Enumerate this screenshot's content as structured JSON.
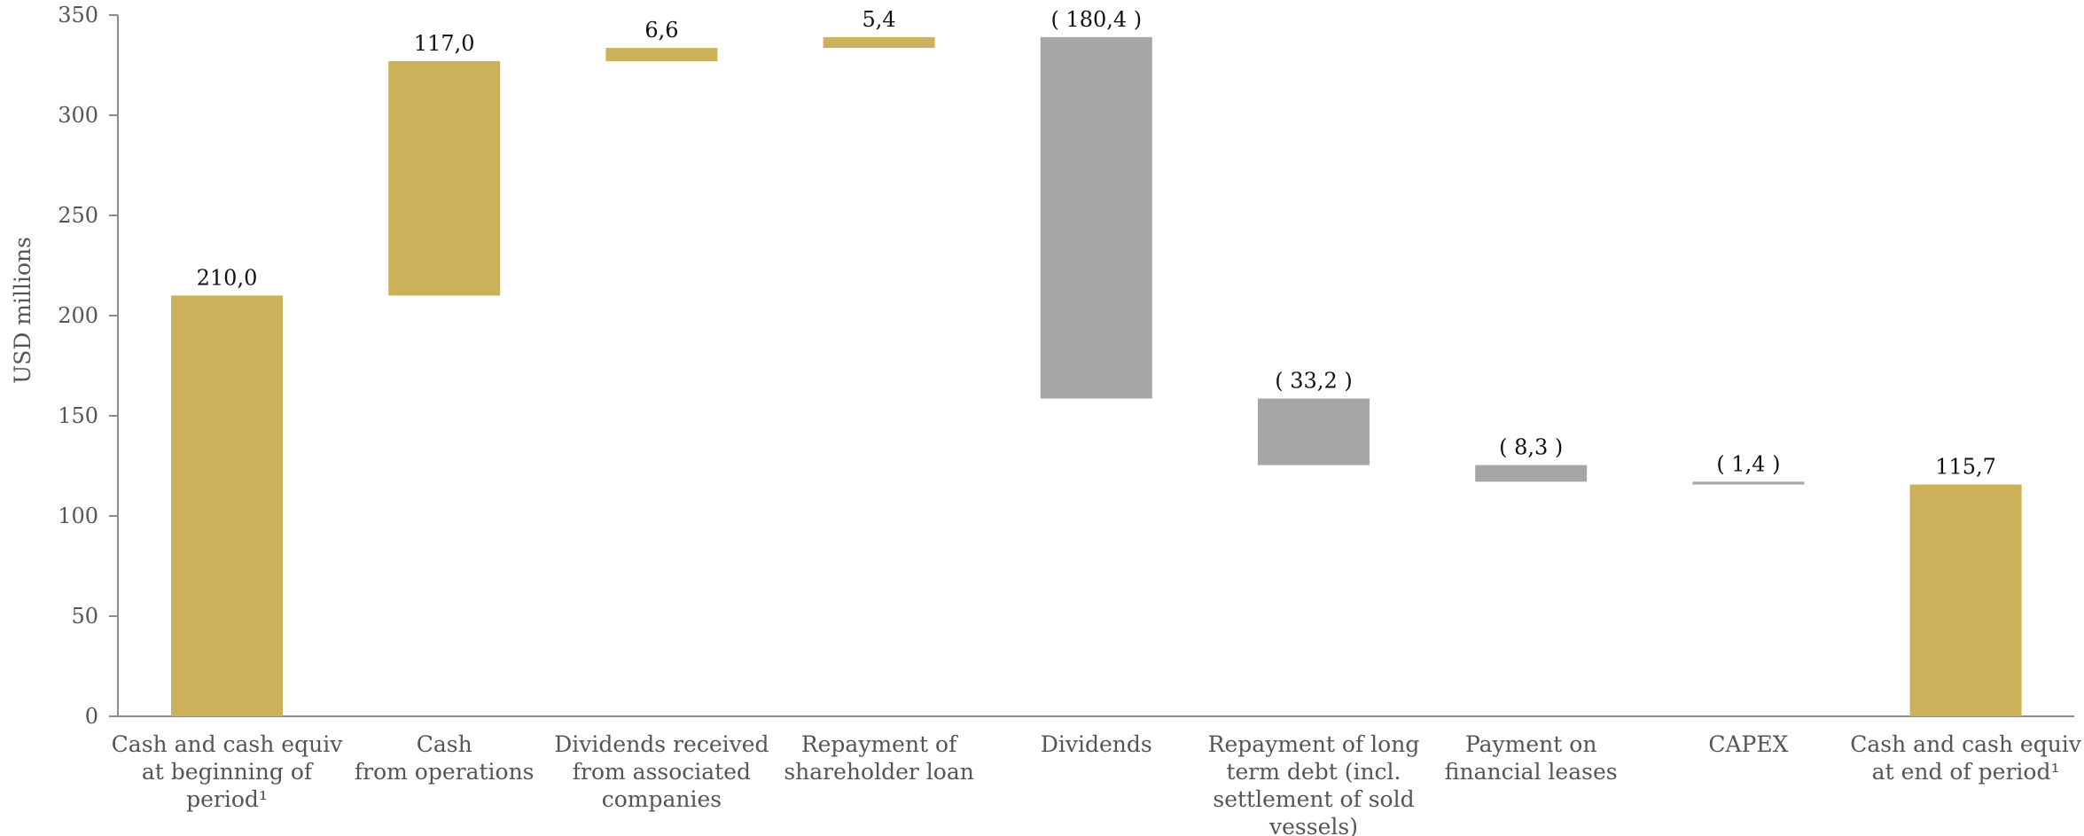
{
  "chart_data": {
    "type": "bar",
    "subtype": "waterfall",
    "title": "",
    "xlabel": "",
    "ylabel": "USD millions",
    "ylim": [
      0,
      350
    ],
    "yticks": [
      0,
      50,
      100,
      150,
      200,
      250,
      300,
      350
    ],
    "yticks_text": [
      "0",
      "50",
      "100",
      "150",
      "200",
      "250",
      "300",
      "350"
    ],
    "grid": false,
    "colors": {
      "positive": "#CCB05A",
      "negative": "#A6A6A6"
    },
    "categories": [
      [
        "Cash and cash equiv",
        "at beginning of",
        "period¹"
      ],
      [
        "Cash",
        "from operations"
      ],
      [
        "Dividends received",
        "from associated",
        "companies"
      ],
      [
        "Repayment of",
        "shareholder loan"
      ],
      [
        "Dividends"
      ],
      [
        "Repayment of long",
        "term debt (incl.",
        "settlement of sold",
        "vessels)"
      ],
      [
        "Payment on",
        "financial leases"
      ],
      [
        "CAPEX"
      ],
      [
        "Cash and cash equiv",
        "at end of period¹"
      ]
    ],
    "bars": [
      {
        "start": 0,
        "end": 210.0,
        "color": "positive",
        "label": "210,0"
      },
      {
        "start": 210.0,
        "end": 327.0,
        "color": "positive",
        "label": "117,0"
      },
      {
        "start": 327.0,
        "end": 333.6,
        "color": "positive",
        "label": "6,6"
      },
      {
        "start": 333.6,
        "end": 339.0,
        "color": "positive",
        "label": "5,4"
      },
      {
        "start": 339.0,
        "end": 158.6,
        "color": "negative",
        "label": "( 180,4 )"
      },
      {
        "start": 158.6,
        "end": 125.4,
        "color": "negative",
        "label": "( 33,2 )"
      },
      {
        "start": 125.4,
        "end": 117.1,
        "color": "negative",
        "label": "( 8,3 )"
      },
      {
        "start": 117.1,
        "end": 115.7,
        "color": "negative",
        "label": "( 1,4 )"
      },
      {
        "start": 0,
        "end": 115.7,
        "color": "positive",
        "label": "115,7"
      }
    ]
  }
}
